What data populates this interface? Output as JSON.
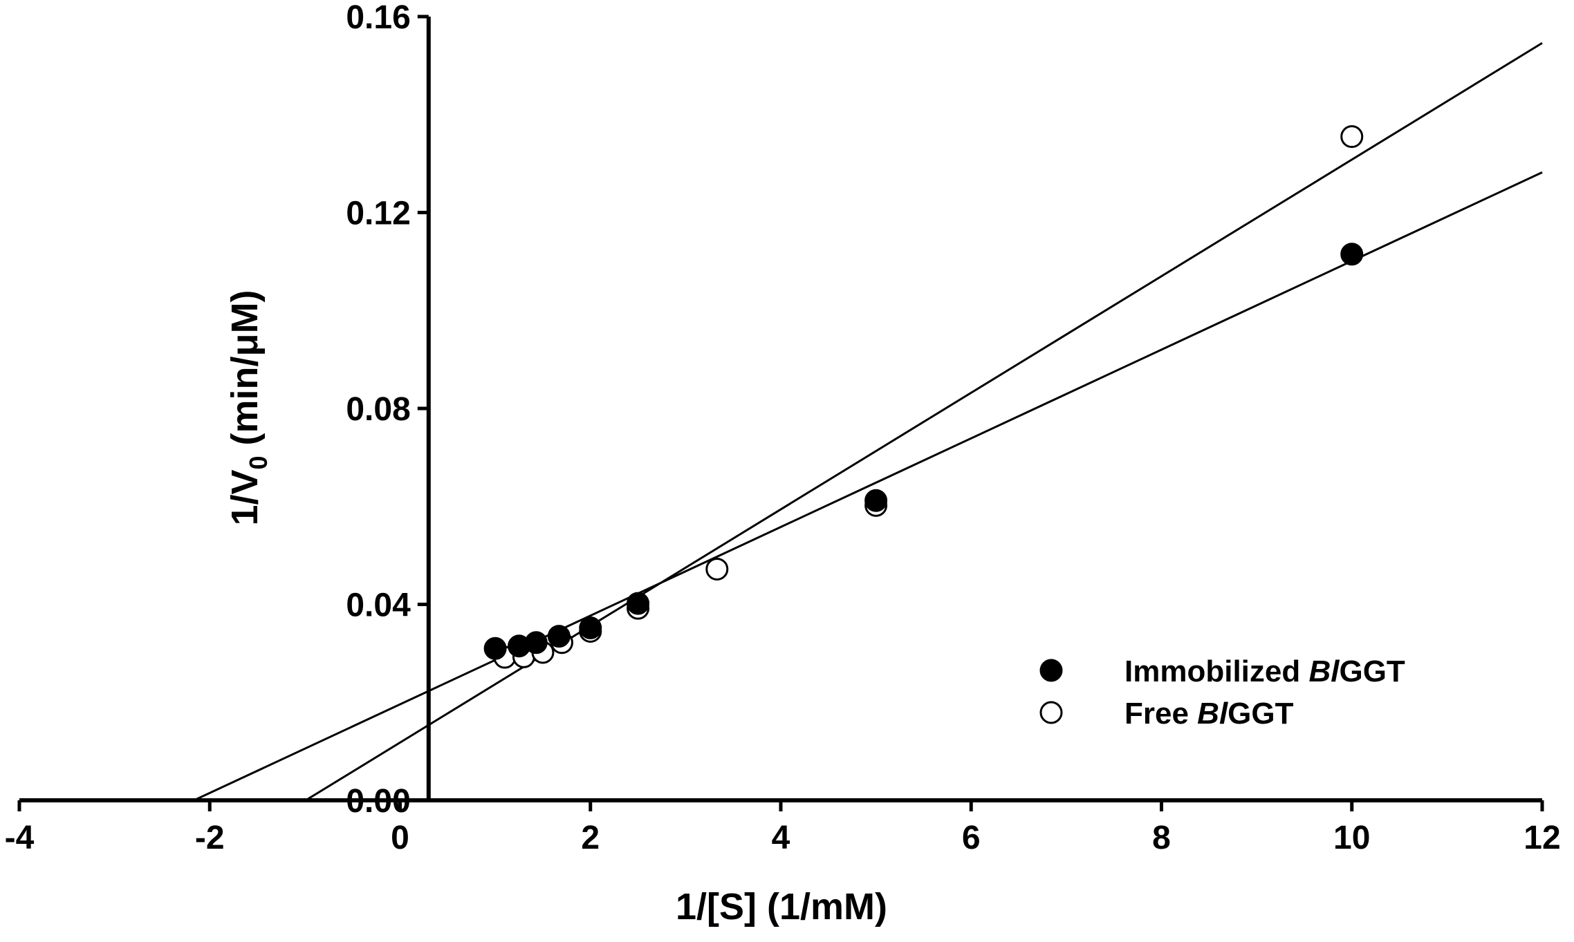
{
  "chart_data": {
    "type": "scatter",
    "title": "",
    "xlabel": "1/[S] (1/mM)",
    "ylabel_main": "1/V",
    "ylabel_sub": "0",
    "ylabel_units": " (min/μM)",
    "xlim": [
      -4,
      12
    ],
    "ylim": [
      0,
      0.16
    ],
    "x_ticks": [
      -4,
      -2,
      0,
      2,
      4,
      6,
      8,
      10,
      12
    ],
    "x_tick_labels": [
      "-4",
      "-2",
      "0",
      "2",
      "4",
      "6",
      "8",
      "10",
      "12"
    ],
    "y_ticks": [
      0,
      0.04,
      0.08,
      0.12,
      0.16
    ],
    "y_tick_labels": [
      "0.00",
      "0.04",
      "0.08",
      "0.12",
      "0.16"
    ],
    "y_axis_at_x": 0.3,
    "grid": false,
    "legend_position": "lower-right",
    "series": [
      {
        "name": "Immobilized BlGGT",
        "name_prefix": "Immobilized ",
        "name_italic": "Bl",
        "name_suffix": "GGT",
        "marker": "filled-circle",
        "x": [
          1.0,
          1.25,
          1.43,
          1.67,
          2.0,
          2.5,
          5.0,
          10.0
        ],
        "y": [
          0.031,
          0.0315,
          0.0322,
          0.0335,
          0.0352,
          0.0402,
          0.0612,
          0.1115
        ],
        "fit": {
          "slope": 0.00905,
          "intercept": 0.0196
        }
      },
      {
        "name": "Free BlGGT",
        "name_prefix": "Free ",
        "name_italic": "Bl",
        "name_suffix": "GGT",
        "marker": "open-circle",
        "x": [
          1.1,
          1.3,
          1.5,
          1.7,
          2.0,
          2.5,
          3.33,
          5.0,
          10.0
        ],
        "y": [
          0.0292,
          0.0293,
          0.0302,
          0.0322,
          0.0345,
          0.0392,
          0.0472,
          0.0602,
          0.1355
        ],
        "fit": {
          "slope": 0.0119,
          "intercept": 0.0118
        }
      }
    ]
  }
}
